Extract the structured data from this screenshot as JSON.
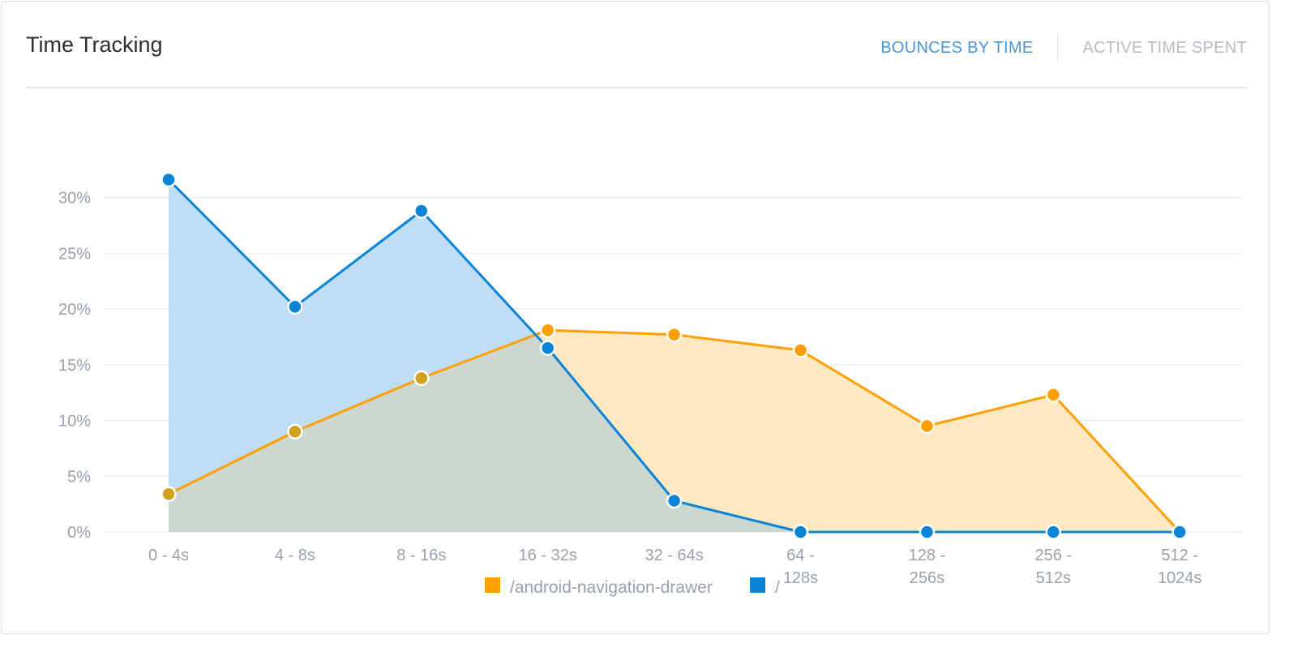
{
  "card": {
    "title": "Time Tracking",
    "tabs": [
      {
        "label": "BOUNCES BY TIME",
        "active": true
      },
      {
        "label": "ACTIVE TIME SPENT",
        "active": false
      }
    ]
  },
  "colors": {
    "orange": "#ff9f00",
    "blue": "#0a84d6",
    "orange_fill": "#ffe9c2",
    "blue_fill": "#bfddf4",
    "overlap_fill": "#cbd7cf",
    "grid": "#e8eaed",
    "axis_text": "#9aa1a9"
  },
  "chart_data": {
    "type": "area",
    "categories": [
      [
        "0 - 4s"
      ],
      [
        "4 - 8s"
      ],
      [
        "8 - 16s"
      ],
      [
        "16 - 32s"
      ],
      [
        "32 - 64s"
      ],
      [
        "64 -",
        "128s"
      ],
      [
        "128 -",
        "256s"
      ],
      [
        "256 -",
        "512s"
      ],
      [
        "512 -",
        "1024s"
      ]
    ],
    "series": [
      {
        "name": "/android-navigation-drawer",
        "color": "#ff9f00",
        "values": [
          3.4,
          9.0,
          13.8,
          18.1,
          17.7,
          16.3,
          9.5,
          12.3,
          0
        ]
      },
      {
        "name": "/",
        "color": "#0a84d6",
        "values": [
          31.6,
          20.2,
          28.8,
          16.5,
          2.8,
          0,
          0,
          0,
          0
        ]
      }
    ],
    "y_ticks": [
      "0%",
      "5%",
      "10%",
      "15%",
      "20%",
      "25%",
      "30%"
    ],
    "ylim": [
      0,
      30
    ],
    "grid": true,
    "legend": "bottom-center"
  }
}
